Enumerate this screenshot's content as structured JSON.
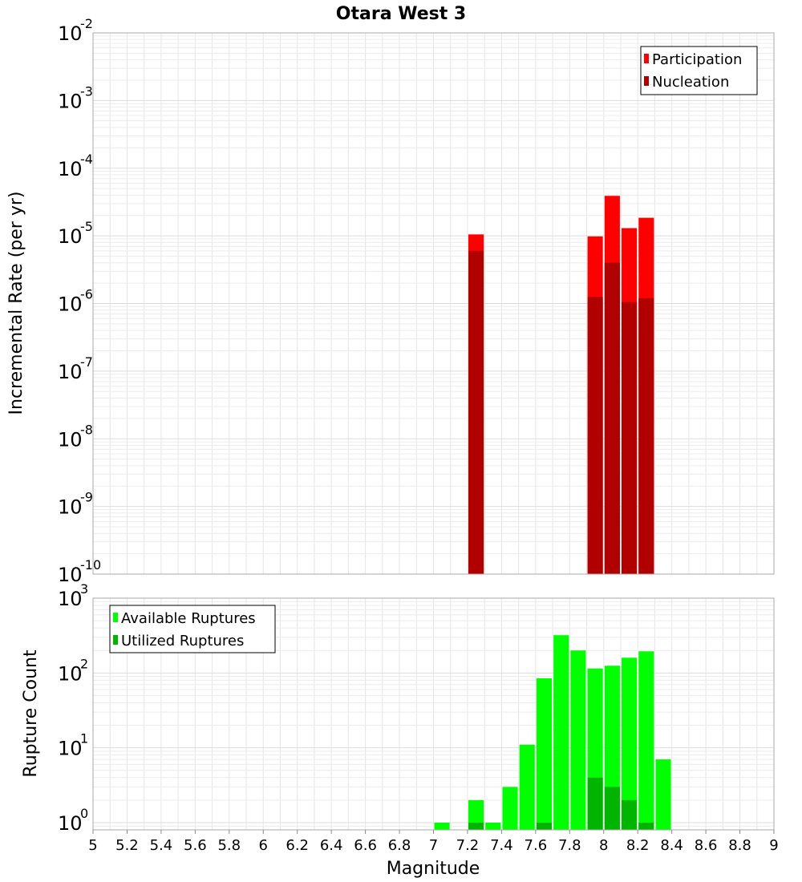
{
  "chart_data": [
    {
      "type": "bar",
      "title": "Otara West 3",
      "ylabel": "Incremental Rate (per yr)",
      "xlabel": "",
      "yscale": "log",
      "ylim": [
        1e-10,
        0.01
      ],
      "xlim": [
        5,
        9
      ],
      "ytick_exponents": [
        "-2",
        "-3",
        "-4",
        "-5",
        "-6",
        "-7",
        "-8",
        "-9",
        "-10"
      ],
      "bar_width": 0.09,
      "legend_position": "top-right",
      "grid": true,
      "series": [
        {
          "name": "Participation",
          "color": "#ff0000",
          "x": [
            7.25,
            7.95,
            8.05,
            8.15,
            8.25
          ],
          "values": [
            1.05e-05,
            9.8e-06,
            3.9e-05,
            1.3e-05,
            1.85e-05
          ]
        },
        {
          "name": "Nucleation",
          "color": "#b00000",
          "x": [
            7.25,
            7.95,
            8.05,
            8.15,
            8.25
          ],
          "values": [
            6e-06,
            1.25e-06,
            4e-06,
            1.05e-06,
            1.2e-06
          ]
        }
      ]
    },
    {
      "type": "bar",
      "ylabel": "Rupture Count",
      "xlabel": "Magnitude",
      "yscale": "log",
      "ylim": [
        0.8,
        1000
      ],
      "xlim": [
        5,
        9
      ],
      "xticks": [
        "5",
        "5.2",
        "5.4",
        "5.6",
        "5.8",
        "6",
        "6.2",
        "6.4",
        "6.6",
        "6.8",
        "7",
        "7.2",
        "7.4",
        "7.6",
        "7.8",
        "8",
        "8.2",
        "8.4",
        "8.6",
        "8.8",
        "9"
      ],
      "ytick_exponents": [
        "3",
        "2",
        "1",
        "0"
      ],
      "bar_width": 0.09,
      "legend_position": "top-left",
      "grid": true,
      "series": [
        {
          "name": "Available Ruptures",
          "color": "#00ff00",
          "x": [
            7.05,
            7.25,
            7.35,
            7.45,
            7.55,
            7.65,
            7.75,
            7.85,
            7.95,
            8.05,
            8.15,
            8.25,
            8.35
          ],
          "values": [
            1,
            2,
            1,
            3,
            11,
            85,
            320,
            200,
            115,
            125,
            160,
            195,
            7
          ]
        },
        {
          "name": "Utilized Ruptures",
          "color": "#00b400",
          "x": [
            7.25,
            7.65,
            7.95,
            8.05,
            8.15,
            8.25
          ],
          "values": [
            1,
            1,
            4,
            3,
            2,
            1
          ]
        }
      ]
    }
  ]
}
